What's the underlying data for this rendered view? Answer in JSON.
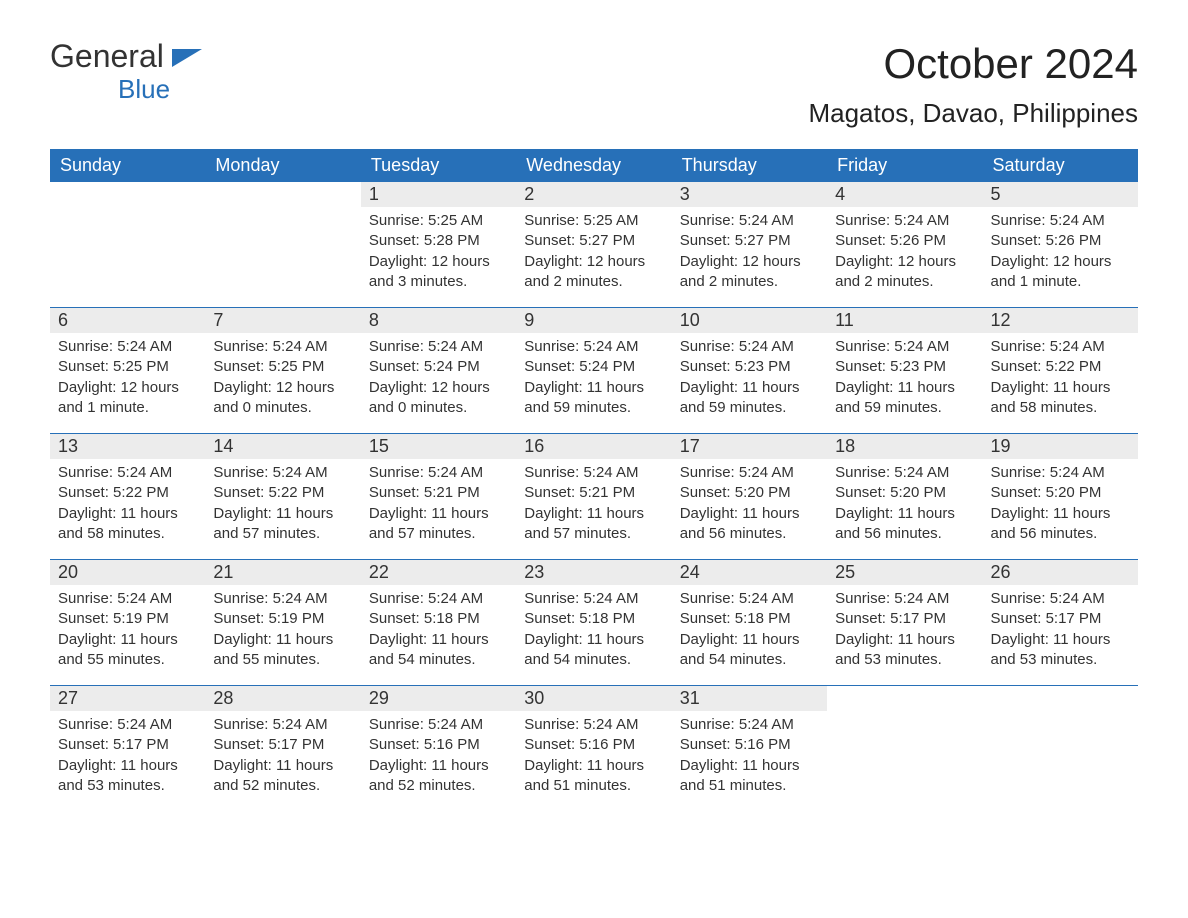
{
  "logo": {
    "text_top": "General",
    "text_bottom": "Blue",
    "brand_color": "#2770b8",
    "text_color": "#333333"
  },
  "header": {
    "month_title": "October 2024",
    "location": "Magatos, Davao, Philippines"
  },
  "calendar": {
    "header_bg": "#2770b8",
    "header_fg": "#ffffff",
    "daynum_bg": "#ececec",
    "border_color": "#2770b8",
    "columns": [
      "Sunday",
      "Monday",
      "Tuesday",
      "Wednesday",
      "Thursday",
      "Friday",
      "Saturday"
    ],
    "weeks": [
      [
        {
          "day": "",
          "sunrise": "",
          "sunset": "",
          "daylight": ""
        },
        {
          "day": "",
          "sunrise": "",
          "sunset": "",
          "daylight": ""
        },
        {
          "day": "1",
          "sunrise": "Sunrise: 5:25 AM",
          "sunset": "Sunset: 5:28 PM",
          "daylight": "Daylight: 12 hours and 3 minutes."
        },
        {
          "day": "2",
          "sunrise": "Sunrise: 5:25 AM",
          "sunset": "Sunset: 5:27 PM",
          "daylight": "Daylight: 12 hours and 2 minutes."
        },
        {
          "day": "3",
          "sunrise": "Sunrise: 5:24 AM",
          "sunset": "Sunset: 5:27 PM",
          "daylight": "Daylight: 12 hours and 2 minutes."
        },
        {
          "day": "4",
          "sunrise": "Sunrise: 5:24 AM",
          "sunset": "Sunset: 5:26 PM",
          "daylight": "Daylight: 12 hours and 2 minutes."
        },
        {
          "day": "5",
          "sunrise": "Sunrise: 5:24 AM",
          "sunset": "Sunset: 5:26 PM",
          "daylight": "Daylight: 12 hours and 1 minute."
        }
      ],
      [
        {
          "day": "6",
          "sunrise": "Sunrise: 5:24 AM",
          "sunset": "Sunset: 5:25 PM",
          "daylight": "Daylight: 12 hours and 1 minute."
        },
        {
          "day": "7",
          "sunrise": "Sunrise: 5:24 AM",
          "sunset": "Sunset: 5:25 PM",
          "daylight": "Daylight: 12 hours and 0 minutes."
        },
        {
          "day": "8",
          "sunrise": "Sunrise: 5:24 AM",
          "sunset": "Sunset: 5:24 PM",
          "daylight": "Daylight: 12 hours and 0 minutes."
        },
        {
          "day": "9",
          "sunrise": "Sunrise: 5:24 AM",
          "sunset": "Sunset: 5:24 PM",
          "daylight": "Daylight: 11 hours and 59 minutes."
        },
        {
          "day": "10",
          "sunrise": "Sunrise: 5:24 AM",
          "sunset": "Sunset: 5:23 PM",
          "daylight": "Daylight: 11 hours and 59 minutes."
        },
        {
          "day": "11",
          "sunrise": "Sunrise: 5:24 AM",
          "sunset": "Sunset: 5:23 PM",
          "daylight": "Daylight: 11 hours and 59 minutes."
        },
        {
          "day": "12",
          "sunrise": "Sunrise: 5:24 AM",
          "sunset": "Sunset: 5:22 PM",
          "daylight": "Daylight: 11 hours and 58 minutes."
        }
      ],
      [
        {
          "day": "13",
          "sunrise": "Sunrise: 5:24 AM",
          "sunset": "Sunset: 5:22 PM",
          "daylight": "Daylight: 11 hours and 58 minutes."
        },
        {
          "day": "14",
          "sunrise": "Sunrise: 5:24 AM",
          "sunset": "Sunset: 5:22 PM",
          "daylight": "Daylight: 11 hours and 57 minutes."
        },
        {
          "day": "15",
          "sunrise": "Sunrise: 5:24 AM",
          "sunset": "Sunset: 5:21 PM",
          "daylight": "Daylight: 11 hours and 57 minutes."
        },
        {
          "day": "16",
          "sunrise": "Sunrise: 5:24 AM",
          "sunset": "Sunset: 5:21 PM",
          "daylight": "Daylight: 11 hours and 57 minutes."
        },
        {
          "day": "17",
          "sunrise": "Sunrise: 5:24 AM",
          "sunset": "Sunset: 5:20 PM",
          "daylight": "Daylight: 11 hours and 56 minutes."
        },
        {
          "day": "18",
          "sunrise": "Sunrise: 5:24 AM",
          "sunset": "Sunset: 5:20 PM",
          "daylight": "Daylight: 11 hours and 56 minutes."
        },
        {
          "day": "19",
          "sunrise": "Sunrise: 5:24 AM",
          "sunset": "Sunset: 5:20 PM",
          "daylight": "Daylight: 11 hours and 56 minutes."
        }
      ],
      [
        {
          "day": "20",
          "sunrise": "Sunrise: 5:24 AM",
          "sunset": "Sunset: 5:19 PM",
          "daylight": "Daylight: 11 hours and 55 minutes."
        },
        {
          "day": "21",
          "sunrise": "Sunrise: 5:24 AM",
          "sunset": "Sunset: 5:19 PM",
          "daylight": "Daylight: 11 hours and 55 minutes."
        },
        {
          "day": "22",
          "sunrise": "Sunrise: 5:24 AM",
          "sunset": "Sunset: 5:18 PM",
          "daylight": "Daylight: 11 hours and 54 minutes."
        },
        {
          "day": "23",
          "sunrise": "Sunrise: 5:24 AM",
          "sunset": "Sunset: 5:18 PM",
          "daylight": "Daylight: 11 hours and 54 minutes."
        },
        {
          "day": "24",
          "sunrise": "Sunrise: 5:24 AM",
          "sunset": "Sunset: 5:18 PM",
          "daylight": "Daylight: 11 hours and 54 minutes."
        },
        {
          "day": "25",
          "sunrise": "Sunrise: 5:24 AM",
          "sunset": "Sunset: 5:17 PM",
          "daylight": "Daylight: 11 hours and 53 minutes."
        },
        {
          "day": "26",
          "sunrise": "Sunrise: 5:24 AM",
          "sunset": "Sunset: 5:17 PM",
          "daylight": "Daylight: 11 hours and 53 minutes."
        }
      ],
      [
        {
          "day": "27",
          "sunrise": "Sunrise: 5:24 AM",
          "sunset": "Sunset: 5:17 PM",
          "daylight": "Daylight: 11 hours and 53 minutes."
        },
        {
          "day": "28",
          "sunrise": "Sunrise: 5:24 AM",
          "sunset": "Sunset: 5:17 PM",
          "daylight": "Daylight: 11 hours and 52 minutes."
        },
        {
          "day": "29",
          "sunrise": "Sunrise: 5:24 AM",
          "sunset": "Sunset: 5:16 PM",
          "daylight": "Daylight: 11 hours and 52 minutes."
        },
        {
          "day": "30",
          "sunrise": "Sunrise: 5:24 AM",
          "sunset": "Sunset: 5:16 PM",
          "daylight": "Daylight: 11 hours and 51 minutes."
        },
        {
          "day": "31",
          "sunrise": "Sunrise: 5:24 AM",
          "sunset": "Sunset: 5:16 PM",
          "daylight": "Daylight: 11 hours and 51 minutes."
        },
        {
          "day": "",
          "sunrise": "",
          "sunset": "",
          "daylight": ""
        },
        {
          "day": "",
          "sunrise": "",
          "sunset": "",
          "daylight": ""
        }
      ]
    ]
  }
}
